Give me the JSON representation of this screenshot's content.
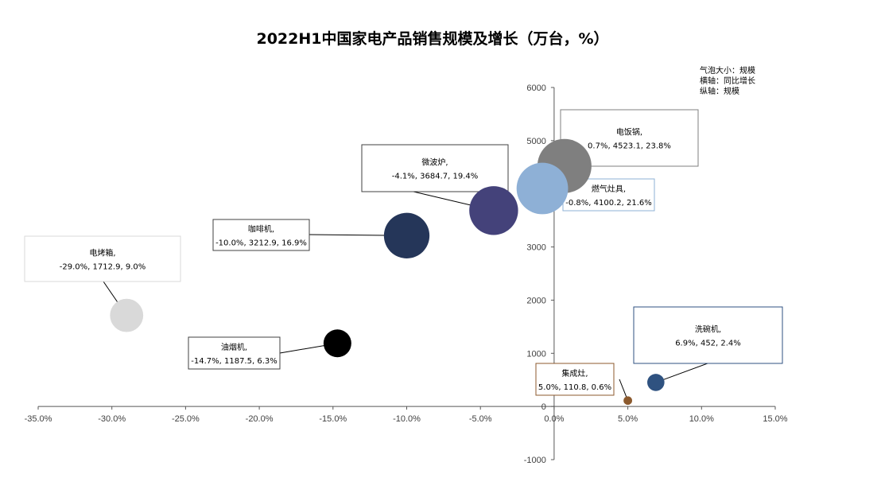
{
  "chart_data": {
    "type": "bubble",
    "title": "2022H1中国家电产品销售规模及增长（万台，%）",
    "notes": [
      "气泡大小：规模",
      "横轴：同比增长",
      "纵轴：规模"
    ],
    "xlim": [
      -35,
      15
    ],
    "ylim": [
      -1000,
      6000
    ],
    "x_ticks": [
      "-35.0%",
      "-30.0%",
      "-25.0%",
      "-20.0%",
      "-15.0%",
      "-10.0%",
      "-5.0%",
      "0.0%",
      "5.0%",
      "10.0%",
      "15.0%"
    ],
    "x_tick_values": [
      -35,
      -30,
      -25,
      -20,
      -15,
      -10,
      -5,
      0,
      5,
      10,
      15
    ],
    "y_ticks": [
      "-1000",
      "0",
      "1000",
      "2000",
      "3000",
      "4000",
      "5000",
      "6000"
    ],
    "y_tick_values": [
      -1000,
      0,
      1000,
      2000,
      3000,
      4000,
      5000,
      6000
    ],
    "grid": false,
    "points": [
      {
        "name": "电饭锅",
        "x": 0.7,
        "y": 4523.1,
        "size": 23.8,
        "color": "#7f7f7f",
        "line1": "电饭锅,",
        "line2": "0.7%, 4523.1, 23.8%"
      },
      {
        "name": "燃气灶具",
        "x": -0.8,
        "y": 4100.2,
        "size": 21.6,
        "color": "#8eb0d6",
        "line1": "燃气灶具,",
        "line2": "-0.8%, 4100.2, 21.6%"
      },
      {
        "name": "微波炉",
        "x": -4.1,
        "y": 3684.7,
        "size": 19.4,
        "color": "#44427a",
        "line1": "微波炉,",
        "line2": "-4.1%, 3684.7, 19.4%"
      },
      {
        "name": "咖啡机",
        "x": -10.0,
        "y": 3212.9,
        "size": 16.9,
        "color": "#253659",
        "line1": "咖啡机,",
        "line2": "-10.0%, 3212.9, 16.9%"
      },
      {
        "name": "电烤箱",
        "x": -29.0,
        "y": 1712.9,
        "size": 9.0,
        "color": "#d9d9d9",
        "line1": "电烤箱,",
        "line2": "-29.0%, 1712.9, 9.0%"
      },
      {
        "name": "油烟机",
        "x": -14.7,
        "y": 1187.5,
        "size": 6.3,
        "color": "#000000",
        "line1": "油烟机,",
        "line2": "-14.7%, 1187.5, 6.3%"
      },
      {
        "name": "洗碗机",
        "x": 6.9,
        "y": 452,
        "size": 2.4,
        "color": "#2f5280",
        "line1": "洗碗机,",
        "line2": "6.9%, 452, 2.4%"
      },
      {
        "name": "集成灶",
        "x": 5.0,
        "y": 110.8,
        "size": 0.6,
        "color": "#8c5a2e",
        "line1": "集成灶,",
        "line2": "5.0%, 110.8, 0.6%"
      }
    ]
  }
}
